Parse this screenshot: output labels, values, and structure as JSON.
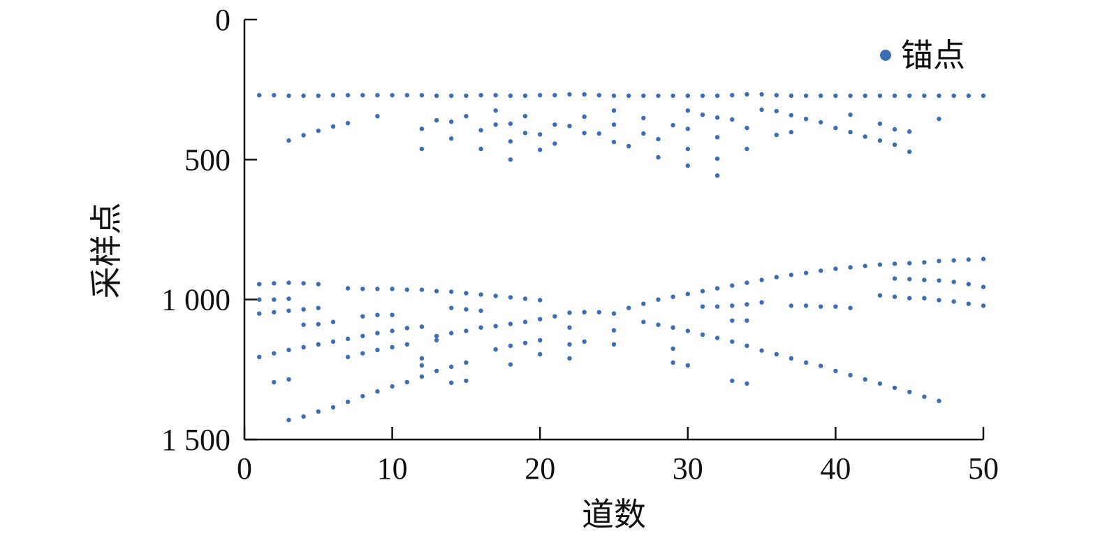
{
  "chart_data": {
    "type": "scatter",
    "xlabel": "道数",
    "ylabel": "采样点",
    "xlim": [
      0,
      50
    ],
    "ylim": [
      0,
      1500
    ],
    "y_inverted": true,
    "x_ticks": [
      0,
      10,
      20,
      30,
      40,
      50
    ],
    "x_tick_labels": [
      "0",
      "10",
      "20",
      "30",
      "40",
      "50"
    ],
    "y_ticks": [
      0,
      500,
      1000,
      1500
    ],
    "y_tick_labels": [
      "0",
      "500",
      "1 000",
      "1 500"
    ],
    "grid": false,
    "legend": {
      "position": "top-right",
      "entries": [
        "锚点"
      ]
    },
    "series": [
      {
        "name": "锚点",
        "color": "#3D6DB5",
        "points": [
          [
            1,
            270
          ],
          [
            2,
            270
          ],
          [
            3,
            272
          ],
          [
            4,
            272
          ],
          [
            5,
            272
          ],
          [
            6,
            270
          ],
          [
            7,
            270
          ],
          [
            8,
            270
          ],
          [
            9,
            270
          ],
          [
            10,
            270
          ],
          [
            11,
            270
          ],
          [
            12,
            270
          ],
          [
            13,
            272
          ],
          [
            14,
            272
          ],
          [
            15,
            272
          ],
          [
            16,
            270
          ],
          [
            17,
            270
          ],
          [
            18,
            272
          ],
          [
            19,
            272
          ],
          [
            20,
            270
          ],
          [
            21,
            270
          ],
          [
            22,
            267
          ],
          [
            23,
            267
          ],
          [
            24,
            270
          ],
          [
            25,
            272
          ],
          [
            26,
            272
          ],
          [
            27,
            272
          ],
          [
            28,
            272
          ],
          [
            29,
            272
          ],
          [
            30,
            272
          ],
          [
            31,
            272
          ],
          [
            32,
            272
          ],
          [
            33,
            270
          ],
          [
            34,
            267
          ],
          [
            35,
            267
          ],
          [
            36,
            270
          ],
          [
            37,
            272
          ],
          [
            38,
            272
          ],
          [
            39,
            272
          ],
          [
            40,
            272
          ],
          [
            41,
            272
          ],
          [
            42,
            272
          ],
          [
            43,
            272
          ],
          [
            44,
            272
          ],
          [
            45,
            272
          ],
          [
            46,
            272
          ],
          [
            47,
            272
          ],
          [
            48,
            272
          ],
          [
            49,
            272
          ],
          [
            50,
            272
          ],
          [
            3,
            432
          ],
          [
            4,
            413
          ],
          [
            5,
            397
          ],
          [
            6,
            382
          ],
          [
            7,
            370
          ],
          [
            9,
            345
          ],
          [
            12,
            390
          ],
          [
            12,
            462
          ],
          [
            13,
            360
          ],
          [
            14,
            365
          ],
          [
            14,
            425
          ],
          [
            15,
            345
          ],
          [
            16,
            395
          ],
          [
            16,
            462
          ],
          [
            17,
            325
          ],
          [
            17,
            375
          ],
          [
            18,
            372
          ],
          [
            18,
            435
          ],
          [
            18,
            500
          ],
          [
            19,
            345
          ],
          [
            19,
            405
          ],
          [
            20,
            410
          ],
          [
            20,
            465
          ],
          [
            21,
            375
          ],
          [
            21,
            443
          ],
          [
            22,
            380
          ],
          [
            23,
            347
          ],
          [
            23,
            405
          ],
          [
            24,
            407
          ],
          [
            25,
            325
          ],
          [
            25,
            375
          ],
          [
            25,
            437
          ],
          [
            26,
            452
          ],
          [
            27,
            352
          ],
          [
            27,
            407
          ],
          [
            28,
            427
          ],
          [
            28,
            492
          ],
          [
            29,
            377
          ],
          [
            30,
            325
          ],
          [
            30,
            390
          ],
          [
            30,
            462
          ],
          [
            30,
            522
          ],
          [
            31,
            340
          ],
          [
            32,
            350
          ],
          [
            32,
            420
          ],
          [
            32,
            497
          ],
          [
            32,
            557
          ],
          [
            33,
            357
          ],
          [
            34,
            387
          ],
          [
            34,
            462
          ],
          [
            35,
            322
          ],
          [
            36,
            327
          ],
          [
            36,
            412
          ],
          [
            37,
            342
          ],
          [
            37,
            402
          ],
          [
            38,
            355
          ],
          [
            39,
            367
          ],
          [
            40,
            387
          ],
          [
            41,
            340
          ],
          [
            41,
            402
          ],
          [
            42,
            418
          ],
          [
            43,
            372
          ],
          [
            43,
            432
          ],
          [
            44,
            392
          ],
          [
            44,
            447
          ],
          [
            45,
            400
          ],
          [
            45,
            472
          ],
          [
            47,
            355
          ],
          [
            1,
            945
          ],
          [
            2,
            942
          ],
          [
            3,
            940
          ],
          [
            4,
            942
          ],
          [
            5,
            945
          ],
          [
            1,
            1000
          ],
          [
            2,
            1000
          ],
          [
            3,
            997
          ],
          [
            1,
            1050
          ],
          [
            2,
            1045
          ],
          [
            3,
            1040
          ],
          [
            4,
            1035
          ],
          [
            5,
            1030
          ],
          [
            4,
            1090
          ],
          [
            5,
            1088
          ],
          [
            6,
            1080
          ],
          [
            1,
            1205
          ],
          [
            2,
            1192
          ],
          [
            3,
            1180
          ],
          [
            4,
            1170
          ],
          [
            5,
            1160
          ],
          [
            6,
            1150
          ],
          [
            7,
            1140
          ],
          [
            8,
            1130
          ],
          [
            9,
            1120
          ],
          [
            10,
            1112
          ],
          [
            11,
            1102
          ],
          [
            12,
            1097
          ],
          [
            2,
            1295
          ],
          [
            3,
            1285
          ],
          [
            3,
            1430
          ],
          [
            4,
            1418
          ],
          [
            5,
            1400
          ],
          [
            6,
            1385
          ],
          [
            7,
            1365
          ],
          [
            8,
            1345
          ],
          [
            9,
            1328
          ],
          [
            10,
            1310
          ],
          [
            11,
            1295
          ],
          [
            12,
            1275
          ],
          [
            13,
            1255
          ],
          [
            14,
            1240
          ],
          [
            15,
            1225
          ],
          [
            14,
            1297
          ],
          [
            15,
            1290
          ],
          [
            7,
            960
          ],
          [
            8,
            962
          ],
          [
            9,
            962
          ],
          [
            10,
            962
          ],
          [
            11,
            965
          ],
          [
            12,
            965
          ],
          [
            13,
            970
          ],
          [
            14,
            972
          ],
          [
            15,
            977
          ],
          [
            16,
            982
          ],
          [
            17,
            987
          ],
          [
            18,
            992
          ],
          [
            19,
            997
          ],
          [
            20,
            1002
          ],
          [
            8,
            1060
          ],
          [
            9,
            1055
          ],
          [
            10,
            1055
          ],
          [
            7,
            1205
          ],
          [
            8,
            1192
          ],
          [
            9,
            1180
          ],
          [
            10,
            1170
          ],
          [
            11,
            1160
          ],
          [
            12,
            1210
          ],
          [
            12,
            1235
          ],
          [
            13,
            1145
          ],
          [
            14,
            1030
          ],
          [
            15,
            1035
          ],
          [
            16,
            1040
          ],
          [
            13,
            1130
          ],
          [
            14,
            1120
          ],
          [
            15,
            1112
          ],
          [
            16,
            1100
          ],
          [
            17,
            1095
          ],
          [
            18,
            1087
          ],
          [
            19,
            1080
          ],
          [
            20,
            1070
          ],
          [
            21,
            1060
          ],
          [
            22,
            1047
          ],
          [
            23,
            1045
          ],
          [
            24,
            1045
          ],
          [
            25,
            1050
          ],
          [
            17,
            1178
          ],
          [
            18,
            1165
          ],
          [
            19,
            1155
          ],
          [
            20,
            1145
          ],
          [
            22,
            1100
          ],
          [
            22,
            1160
          ],
          [
            23,
            1150
          ],
          [
            25,
            1110
          ],
          [
            25,
            1160
          ],
          [
            18,
            1232
          ],
          [
            20,
            1195
          ],
          [
            22,
            1210
          ],
          [
            26,
            1030
          ],
          [
            27,
            1015
          ],
          [
            28,
            1000
          ],
          [
            29,
            990
          ],
          [
            30,
            980
          ],
          [
            31,
            970
          ],
          [
            32,
            960
          ],
          [
            33,
            950
          ],
          [
            34,
            940
          ],
          [
            35,
            930
          ],
          [
            36,
            920
          ],
          [
            37,
            912
          ],
          [
            38,
            905
          ],
          [
            39,
            897
          ],
          [
            40,
            890
          ],
          [
            41,
            885
          ],
          [
            42,
            880
          ],
          [
            43,
            875
          ],
          [
            44,
            872
          ],
          [
            45,
            870
          ],
          [
            46,
            867
          ],
          [
            47,
            862
          ],
          [
            48,
            860
          ],
          [
            49,
            857
          ],
          [
            50,
            855
          ],
          [
            27,
            1080
          ],
          [
            28,
            1090
          ],
          [
            29,
            1100
          ],
          [
            30,
            1112
          ],
          [
            31,
            1125
          ],
          [
            32,
            1137
          ],
          [
            33,
            1150
          ],
          [
            34,
            1165
          ],
          [
            35,
            1182
          ],
          [
            36,
            1195
          ],
          [
            37,
            1210
          ],
          [
            38,
            1225
          ],
          [
            39,
            1237
          ],
          [
            40,
            1255
          ],
          [
            41,
            1270
          ],
          [
            42,
            1285
          ],
          [
            43,
            1300
          ],
          [
            44,
            1315
          ],
          [
            45,
            1330
          ],
          [
            46,
            1347
          ],
          [
            47,
            1362
          ],
          [
            29,
            1175
          ],
          [
            29,
            1225
          ],
          [
            30,
            1235
          ],
          [
            31,
            1025
          ],
          [
            32,
            1025
          ],
          [
            33,
            1022
          ],
          [
            34,
            1017
          ],
          [
            35,
            1010
          ],
          [
            33,
            1075
          ],
          [
            34,
            1075
          ],
          [
            33,
            1290
          ],
          [
            34,
            1300
          ],
          [
            37,
            1022
          ],
          [
            38,
            1022
          ],
          [
            39,
            1025
          ],
          [
            40,
            1025
          ],
          [
            41,
            1030
          ],
          [
            43,
            985
          ],
          [
            44,
            990
          ],
          [
            45,
            995
          ],
          [
            46,
            995
          ],
          [
            47,
            1002
          ],
          [
            48,
            1007
          ],
          [
            49,
            1015
          ],
          [
            50,
            1022
          ],
          [
            44,
            925
          ],
          [
            45,
            927
          ],
          [
            46,
            930
          ],
          [
            47,
            932
          ],
          [
            48,
            937
          ],
          [
            49,
            945
          ],
          [
            50,
            955
          ]
        ]
      }
    ]
  }
}
